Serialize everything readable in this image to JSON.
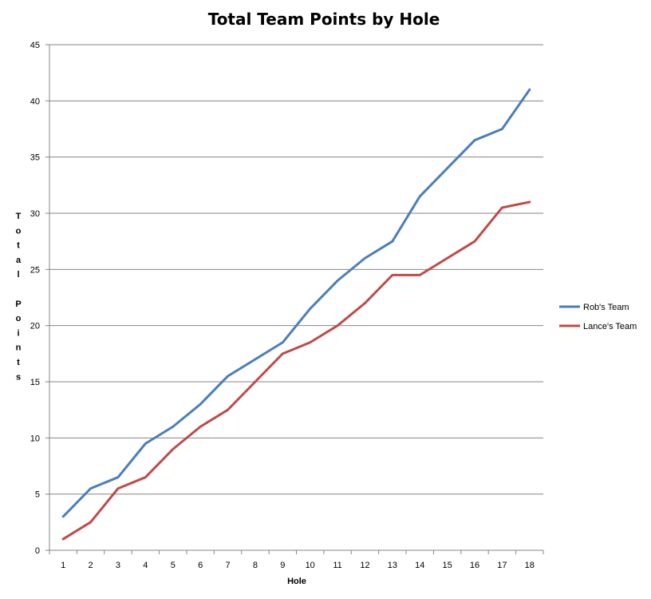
{
  "chart_data": {
    "type": "line",
    "title": "Total Team Points by Hole",
    "xlabel": "Hole",
    "ylabel": "Total Points",
    "categories": [
      "1",
      "2",
      "3",
      "4",
      "5",
      "6",
      "7",
      "8",
      "9",
      "10",
      "11",
      "12",
      "13",
      "14",
      "15",
      "16",
      "17",
      "18"
    ],
    "ylim": [
      0,
      45
    ],
    "yticks": [
      "0",
      "5",
      "10",
      "15",
      "20",
      "25",
      "30",
      "35",
      "40",
      "45"
    ],
    "grid": true,
    "legend_position": "right",
    "series": [
      {
        "name": "Rob's Team",
        "color": "#4A7EBB",
        "values": [
          3,
          5.5,
          6.5,
          9.5,
          11,
          13,
          15.5,
          17,
          18.5,
          21.5,
          24,
          26,
          27.5,
          31.5,
          34,
          36.5,
          37.5,
          41
        ]
      },
      {
        "name": "Lance's Team",
        "color": "#BE4B48",
        "values": [
          1,
          2.5,
          5.5,
          6.5,
          9,
          11,
          12.5,
          15,
          17.5,
          18.5,
          20,
          22,
          24.5,
          24.5,
          26,
          27.5,
          30.5,
          31
        ]
      }
    ]
  }
}
